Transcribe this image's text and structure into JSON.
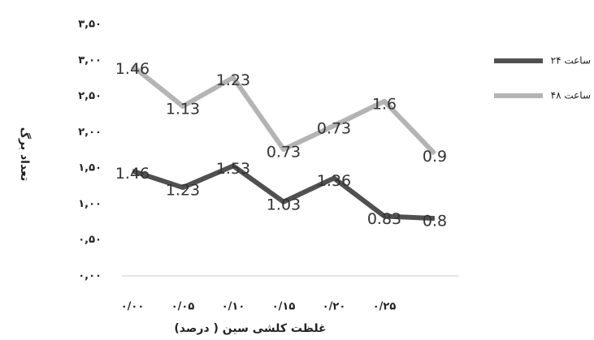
{
  "chart_data": {
    "type": "line",
    "stacked": true,
    "x_label": "غلظت کلشی سین ( درصد)",
    "y_label": "تعداد برگ",
    "categories": [
      "۰/۰۰",
      "۰/۰۵",
      "۰/۱۰",
      "۰/۱۵",
      "۰/۲۰",
      "۰/۲۵",
      null
    ],
    "series": [
      {
        "name": "۲۴ ساعت",
        "color": "#505050",
        "values": [
          1.46,
          1.23,
          1.53,
          1.03,
          1.36,
          0.83,
          0.8
        ]
      },
      {
        "name": "۴۸ ساعت",
        "color": "#b4b4b4",
        "values": [
          1.46,
          1.13,
          1.23,
          0.73,
          0.73,
          1.6,
          0.9
        ]
      }
    ],
    "ylim": [
      0,
      3.5
    ],
    "yticks": [
      {
        "value": 0,
        "label": "۰,۰۰"
      },
      {
        "value": 0.5,
        "label": "۰,۵۰"
      },
      {
        "value": 1,
        "label": "۱,۰۰"
      },
      {
        "value": 1.5,
        "label": "۱,۵۰"
      },
      {
        "value": 2,
        "label": "۲,۰۰"
      },
      {
        "value": 2.5,
        "label": "۲,۵۰"
      },
      {
        "value": 3,
        "label": "۳,۰۰"
      },
      {
        "value": 3.5,
        "label": "۳,۵۰"
      }
    ],
    "grid": false,
    "legend": "right"
  }
}
